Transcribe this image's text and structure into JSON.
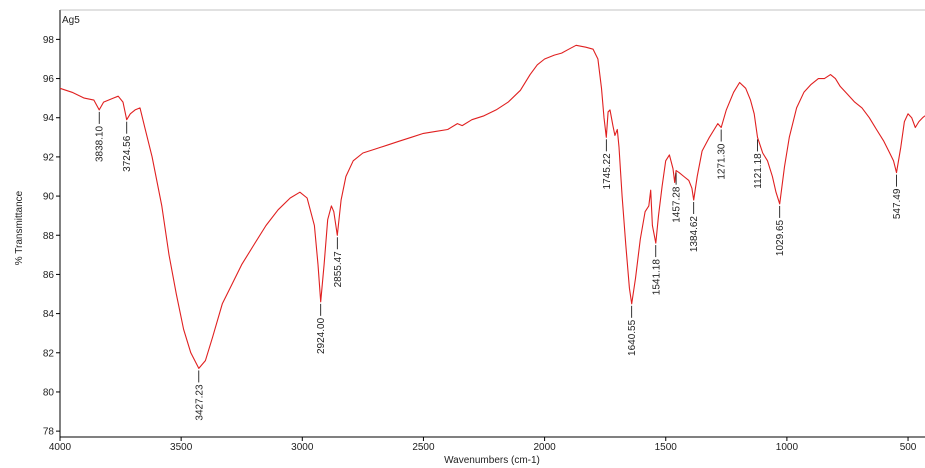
{
  "chart_data": {
    "type": "line",
    "title": "Ag5",
    "xlabel": "Wavenumbers (cm-1)",
    "ylabel": "% Transmittance",
    "xlim": [
      4000,
      430
    ],
    "ylim": [
      77.7,
      99.5
    ],
    "x_ticks": [
      4000,
      3500,
      3000,
      2500,
      2000,
      1500,
      1000,
      500
    ],
    "y_ticks": [
      78,
      80,
      82,
      84,
      86,
      88,
      90,
      92,
      94,
      96,
      98
    ],
    "grid": false,
    "colors": {
      "line": "#e02020",
      "axis": "#000000",
      "leader": "#000000"
    },
    "series": [
      {
        "points": [
          [
            4000,
            95.5
          ],
          [
            3950,
            95.3
          ],
          [
            3900,
            95.0
          ],
          [
            3860,
            94.9
          ],
          [
            3838.1,
            94.4
          ],
          [
            3820,
            94.8
          ],
          [
            3780,
            95.0
          ],
          [
            3760,
            95.1
          ],
          [
            3740,
            94.8
          ],
          [
            3724.56,
            93.9
          ],
          [
            3710,
            94.2
          ],
          [
            3690,
            94.4
          ],
          [
            3670,
            94.5
          ],
          [
            3650,
            93.5
          ],
          [
            3620,
            92.0
          ],
          [
            3580,
            89.5
          ],
          [
            3550,
            87.0
          ],
          [
            3520,
            85.0
          ],
          [
            3490,
            83.2
          ],
          [
            3460,
            82.0
          ],
          [
            3427.23,
            81.2
          ],
          [
            3400,
            81.6
          ],
          [
            3370,
            82.8
          ],
          [
            3330,
            84.5
          ],
          [
            3290,
            85.5
          ],
          [
            3250,
            86.5
          ],
          [
            3200,
            87.5
          ],
          [
            3150,
            88.5
          ],
          [
            3100,
            89.3
          ],
          [
            3050,
            89.9
          ],
          [
            3010,
            90.2
          ],
          [
            2980,
            89.9
          ],
          [
            2950,
            88.5
          ],
          [
            2935,
            86.5
          ],
          [
            2924.0,
            84.6
          ],
          [
            2910,
            86.5
          ],
          [
            2895,
            88.8
          ],
          [
            2880,
            89.5
          ],
          [
            2870,
            89.2
          ],
          [
            2855.47,
            88.0
          ],
          [
            2840,
            89.8
          ],
          [
            2820,
            91.0
          ],
          [
            2790,
            91.8
          ],
          [
            2750,
            92.2
          ],
          [
            2700,
            92.4
          ],
          [
            2650,
            92.6
          ],
          [
            2600,
            92.8
          ],
          [
            2550,
            93.0
          ],
          [
            2500,
            93.2
          ],
          [
            2450,
            93.3
          ],
          [
            2400,
            93.4
          ],
          [
            2360,
            93.7
          ],
          [
            2340,
            93.6
          ],
          [
            2300,
            93.9
          ],
          [
            2250,
            94.1
          ],
          [
            2200,
            94.4
          ],
          [
            2150,
            94.8
          ],
          [
            2100,
            95.4
          ],
          [
            2060,
            96.2
          ],
          [
            2030,
            96.7
          ],
          [
            2000,
            97.0
          ],
          [
            1960,
            97.2
          ],
          [
            1930,
            97.3
          ],
          [
            1900,
            97.5
          ],
          [
            1870,
            97.7
          ],
          [
            1830,
            97.6
          ],
          [
            1800,
            97.5
          ],
          [
            1780,
            97.0
          ],
          [
            1765,
            95.5
          ],
          [
            1755,
            94.0
          ],
          [
            1745.22,
            93.0
          ],
          [
            1738,
            94.3
          ],
          [
            1730,
            94.4
          ],
          [
            1718,
            93.6
          ],
          [
            1710,
            93.1
          ],
          [
            1700,
            93.4
          ],
          [
            1693,
            92.5
          ],
          [
            1680,
            90.0
          ],
          [
            1665,
            87.5
          ],
          [
            1650,
            85.3
          ],
          [
            1640.55,
            84.5
          ],
          [
            1625,
            85.8
          ],
          [
            1605,
            87.8
          ],
          [
            1585,
            89.2
          ],
          [
            1570,
            89.5
          ],
          [
            1562,
            90.3
          ],
          [
            1555,
            88.5
          ],
          [
            1541.18,
            87.6
          ],
          [
            1530,
            89.0
          ],
          [
            1515,
            90.5
          ],
          [
            1500,
            91.8
          ],
          [
            1485,
            92.1
          ],
          [
            1470,
            91.4
          ],
          [
            1463,
            90.7
          ],
          [
            1457.28,
            91.3
          ],
          [
            1445,
            91.2
          ],
          [
            1425,
            91.0
          ],
          [
            1405,
            90.8
          ],
          [
            1392,
            90.4
          ],
          [
            1384.62,
            89.8
          ],
          [
            1370,
            91.0
          ],
          [
            1350,
            92.3
          ],
          [
            1320,
            93.0
          ],
          [
            1300,
            93.4
          ],
          [
            1285,
            93.7
          ],
          [
            1271.3,
            93.5
          ],
          [
            1250,
            94.4
          ],
          [
            1220,
            95.3
          ],
          [
            1195,
            95.8
          ],
          [
            1170,
            95.5
          ],
          [
            1150,
            94.9
          ],
          [
            1135,
            94.2
          ],
          [
            1121.18,
            93.0
          ],
          [
            1100,
            92.2
          ],
          [
            1080,
            91.8
          ],
          [
            1060,
            91.0
          ],
          [
            1045,
            90.2
          ],
          [
            1029.65,
            89.6
          ],
          [
            1010,
            91.5
          ],
          [
            990,
            93.0
          ],
          [
            960,
            94.5
          ],
          [
            930,
            95.3
          ],
          [
            900,
            95.7
          ],
          [
            870,
            96.0
          ],
          [
            845,
            96.0
          ],
          [
            820,
            96.2
          ],
          [
            800,
            96.0
          ],
          [
            780,
            95.6
          ],
          [
            750,
            95.2
          ],
          [
            720,
            94.8
          ],
          [
            690,
            94.5
          ],
          [
            660,
            94.0
          ],
          [
            630,
            93.4
          ],
          [
            600,
            92.8
          ],
          [
            580,
            92.3
          ],
          [
            560,
            91.8
          ],
          [
            547.49,
            91.2
          ],
          [
            530,
            92.5
          ],
          [
            515,
            93.8
          ],
          [
            500,
            94.2
          ],
          [
            485,
            94.0
          ],
          [
            470,
            93.5
          ],
          [
            455,
            93.8
          ],
          [
            440,
            94.0
          ],
          [
            430,
            94.1
          ]
        ]
      }
    ],
    "peaks": [
      {
        "x": 3838.1,
        "label": "3838.10",
        "orient": "below"
      },
      {
        "x": 3724.56,
        "label": "3724.56",
        "orient": "below"
      },
      {
        "x": 3427.23,
        "label": "3427.23",
        "orient": "below"
      },
      {
        "x": 2924.0,
        "label": "2924.00",
        "orient": "below"
      },
      {
        "x": 2855.47,
        "label": "2855.47",
        "orient": "below"
      },
      {
        "x": 1745.22,
        "label": "1745.22",
        "orient": "below"
      },
      {
        "x": 1640.55,
        "label": "1640.55",
        "orient": "below"
      },
      {
        "x": 1541.18,
        "label": "1541.18",
        "orient": "below"
      },
      {
        "x": 1457.28,
        "label": "1457.28",
        "orient": "below"
      },
      {
        "x": 1384.62,
        "label": "1384.62",
        "orient": "below"
      },
      {
        "x": 1271.3,
        "label": "1271.30",
        "orient": "below"
      },
      {
        "x": 1121.18,
        "label": "1121.18",
        "orient": "below"
      },
      {
        "x": 1029.65,
        "label": "1029.65",
        "orient": "below"
      },
      {
        "x": 547.49,
        "label": "547.49",
        "orient": "below"
      }
    ]
  }
}
